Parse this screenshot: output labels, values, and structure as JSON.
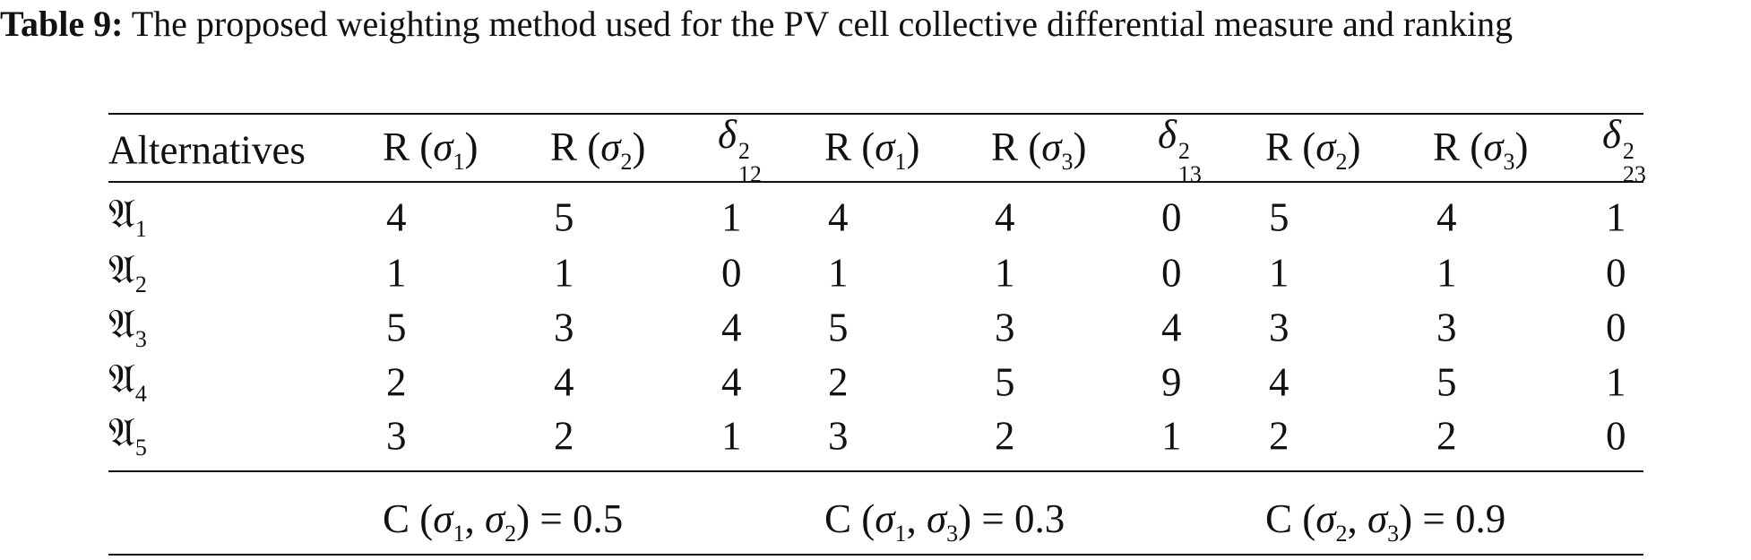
{
  "caption": {
    "label": "Table 9:",
    "text": "The proposed weighting method used for the PV cell collective differential measure and ranking"
  },
  "table": {
    "header": [
      [
        {
          "text": "Alternatives"
        }
      ],
      [
        {
          "text": "R ("
        },
        {
          "var": "σ",
          "sub": "1"
        },
        {
          "text": ")"
        }
      ],
      [
        {
          "text": "R ("
        },
        {
          "var": "σ",
          "sub": "2"
        },
        {
          "text": ")"
        }
      ],
      [
        {
          "var": "δ",
          "sup": "2",
          "sub": "12"
        }
      ],
      [
        {
          "text": "R ("
        },
        {
          "var": "σ",
          "sub": "1"
        },
        {
          "text": ")"
        }
      ],
      [
        {
          "text": "R ("
        },
        {
          "var": "σ",
          "sub": "3"
        },
        {
          "text": ")"
        }
      ],
      [
        {
          "var": "δ",
          "sup": "2",
          "sub": "13"
        }
      ],
      [
        {
          "text": "R ("
        },
        {
          "var": "σ",
          "sub": "2"
        },
        {
          "text": ")"
        }
      ],
      [
        {
          "text": "R ("
        },
        {
          "var": "σ",
          "sub": "3"
        },
        {
          "text": ")"
        }
      ],
      [
        {
          "var": "δ",
          "sup": "2",
          "sub": "23"
        }
      ]
    ],
    "rows": [
      {
        "label": [
          {
            "frak": "𝔄",
            "sub": "1"
          }
        ],
        "values": [
          4,
          5,
          1,
          4,
          4,
          0,
          5,
          4,
          1
        ]
      },
      {
        "label": [
          {
            "frak": "𝔄",
            "sub": "2"
          }
        ],
        "values": [
          1,
          1,
          0,
          1,
          1,
          0,
          1,
          1,
          0
        ]
      },
      {
        "label": [
          {
            "frak": "𝔄",
            "sub": "3"
          }
        ],
        "values": [
          5,
          3,
          4,
          5,
          3,
          4,
          3,
          3,
          0
        ]
      },
      {
        "label": [
          {
            "frak": "𝔄",
            "sub": "4"
          }
        ],
        "values": [
          2,
          4,
          4,
          2,
          5,
          9,
          4,
          5,
          1
        ]
      },
      {
        "label": [
          {
            "frak": "𝔄",
            "sub": "5"
          }
        ],
        "values": [
          3,
          2,
          1,
          3,
          2,
          1,
          2,
          2,
          0
        ]
      }
    ],
    "footer": [
      [
        {
          "text": "C ("
        },
        {
          "var": "σ",
          "sub": "1"
        },
        {
          "text": ", "
        },
        {
          "var": "σ",
          "sub": "2"
        },
        {
          "text": ") = "
        },
        {
          "num": 0.5
        }
      ],
      [
        {
          "text": "C ("
        },
        {
          "var": "σ",
          "sub": "1"
        },
        {
          "text": ", "
        },
        {
          "var": "σ",
          "sub": "3"
        },
        {
          "text": ") = "
        },
        {
          "num": 0.3
        }
      ],
      [
        {
          "text": "C ("
        },
        {
          "var": "σ",
          "sub": "2"
        },
        {
          "text": ", "
        },
        {
          "var": "σ",
          "sub": "3"
        },
        {
          "text": ") = "
        },
        {
          "num": 0.9
        }
      ]
    ]
  }
}
